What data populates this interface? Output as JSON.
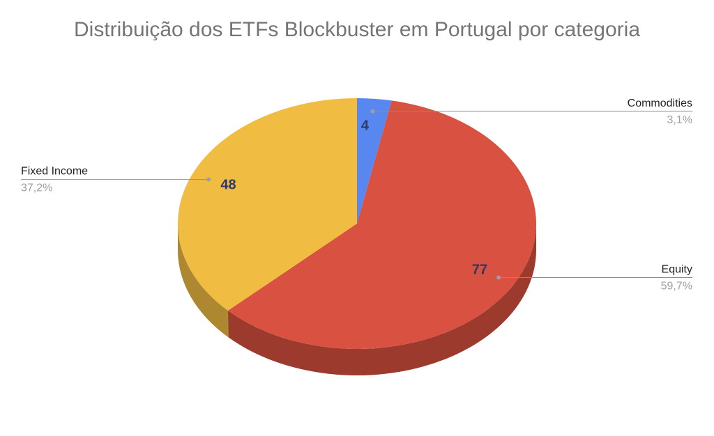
{
  "chart_data": {
    "type": "pie",
    "title": "Distribuição dos ETFs Blockbuster em Portugal por categoria",
    "three_d": true,
    "slices": [
      {
        "label": "Commodities",
        "value": 4,
        "percent": "3,1%",
        "color": "#5887f0"
      },
      {
        "label": "Equity",
        "value": 77,
        "percent": "59,7%",
        "color": "#d95140"
      },
      {
        "label": "Fixed Income",
        "value": 48,
        "percent": "37,2%",
        "color": "#f0bd42"
      }
    ]
  }
}
